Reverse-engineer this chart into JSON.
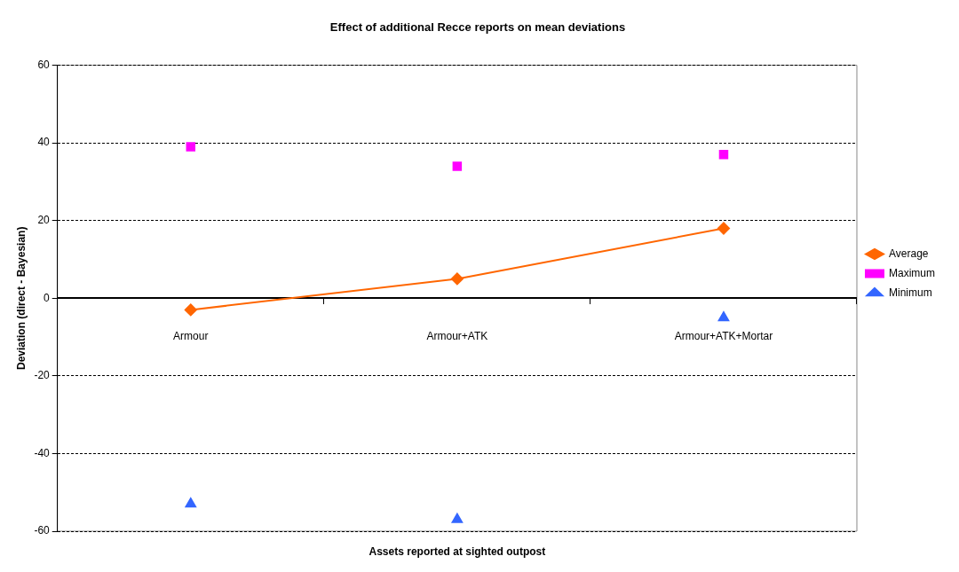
{
  "chart_data": {
    "type": "line",
    "title": "Effect of additional Recce reports on mean deviations",
    "xlabel": "Assets reported at sighted outpost",
    "ylabel": "Deviation (direct - Bayesian)",
    "categories": [
      "Armour",
      "Armour+ATK",
      "Armour+ATK+Mortar"
    ],
    "series": [
      {
        "name": "Average",
        "type": "line",
        "color": "#ff6600",
        "marker": "diamond",
        "values": [
          -3,
          5,
          18
        ]
      },
      {
        "name": "Maximum",
        "type": "scatter",
        "color": "#ff00ff",
        "marker": "square",
        "values": [
          39,
          34,
          37
        ]
      },
      {
        "name": "Minimum",
        "type": "scatter",
        "color": "#3366ff",
        "marker": "triangle",
        "values": [
          -53,
          -57,
          -5
        ]
      }
    ],
    "ylim": [
      -60,
      60
    ],
    "yticks": [
      -60,
      -40,
      -20,
      0,
      20,
      40,
      60
    ],
    "grid": "y",
    "legend": "right"
  }
}
